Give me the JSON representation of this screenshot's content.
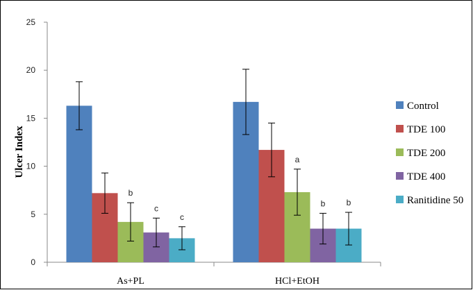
{
  "chart_data": {
    "type": "bar",
    "ylabel": "Ulcer Index",
    "xlabel": "",
    "ylim": [
      0,
      25
    ],
    "yticks": [
      0,
      5,
      10,
      15,
      20,
      25
    ],
    "grid": false,
    "legend_position": "right",
    "categories": [
      "As+PL",
      "HCl+EtOH"
    ],
    "series": [
      {
        "name": "Control",
        "color": "#4f81bd",
        "values": [
          16.3,
          16.7
        ],
        "errors": [
          2.5,
          3.4
        ],
        "labels": [
          "",
          ""
        ]
      },
      {
        "name": "TDE 100",
        "color": "#c0504d",
        "values": [
          7.2,
          11.7
        ],
        "errors": [
          2.1,
          2.8
        ],
        "labels": [
          "",
          ""
        ]
      },
      {
        "name": "TDE 200",
        "color": "#9bbb59",
        "values": [
          4.2,
          7.3
        ],
        "errors": [
          2.0,
          2.4
        ],
        "labels": [
          "b",
          "a"
        ]
      },
      {
        "name": "TDE 400",
        "color": "#8064a2",
        "values": [
          3.1,
          3.5
        ],
        "errors": [
          1.5,
          1.6
        ],
        "labels": [
          "c",
          "b"
        ]
      },
      {
        "name": "Ranitidine 50",
        "color": "#4bacc6",
        "values": [
          2.5,
          3.5
        ],
        "errors": [
          1.2,
          1.7
        ],
        "labels": [
          "c",
          "b"
        ]
      }
    ]
  }
}
